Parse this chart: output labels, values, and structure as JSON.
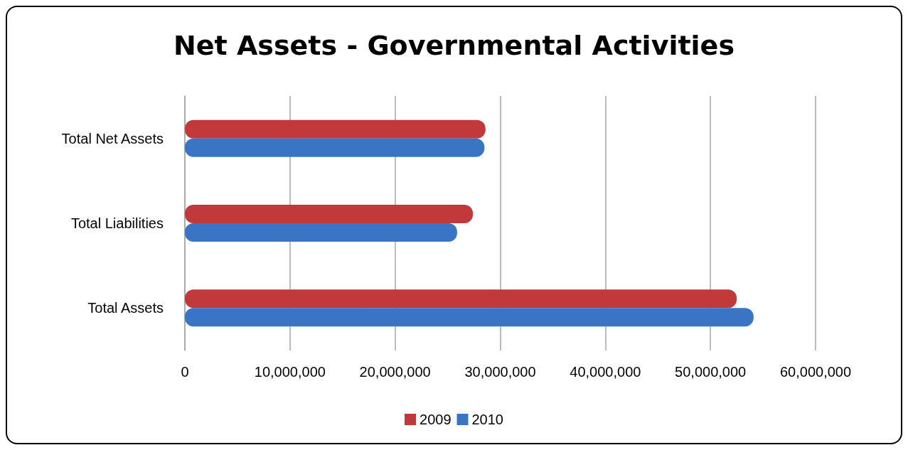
{
  "chart_data": {
    "type": "bar",
    "orientation": "horizontal",
    "title": "Net Assets - Governmental Activities",
    "categories": [
      "Total Net Assets",
      "Total Liabilities",
      "Total Assets"
    ],
    "series": [
      {
        "name": "2009",
        "color": "#c0393b",
        "values": [
          28600000,
          27400000,
          52500000
        ]
      },
      {
        "name": "2010",
        "color": "#3a74c4",
        "values": [
          28500000,
          25900000,
          54100000
        ]
      }
    ],
    "xlim": [
      0,
      60000000
    ],
    "xticks": [
      0,
      {
        "value": 10000000,
        "label": "10,000,000"
      },
      {
        "value": 20000000,
        "label": "20,000,000"
      },
      {
        "value": 30000000,
        "label": "30,000,000"
      },
      {
        "value": 40000000,
        "label": "40,000,000"
      },
      {
        "value": 50000000,
        "label": "50,000,000"
      },
      {
        "value": 60000000,
        "label": "60,000,000"
      }
    ],
    "grid": "x",
    "legend": "bottom"
  }
}
